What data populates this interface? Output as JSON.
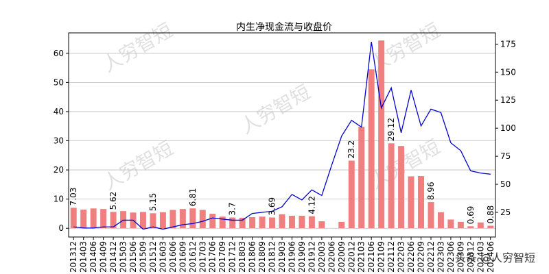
{
  "watermark": "人穷智短",
  "footer_watermark": "头条 @人穷智短",
  "chart_data": {
    "type": "bar",
    "title": "内生净现金流与收盘价",
    "categories": [
      "201312",
      "201403",
      "201406",
      "201409",
      "201412",
      "201503",
      "201506",
      "201509",
      "201512",
      "201603",
      "201606",
      "201609",
      "201612",
      "201703",
      "201706",
      "201709",
      "201712",
      "201803",
      "201806",
      "201809",
      "201812",
      "201903",
      "201906",
      "201909",
      "201912",
      "202003",
      "202006",
      "202009",
      "202012",
      "202103",
      "202106",
      "202109",
      "202112",
      "202203",
      "202206",
      "202209",
      "202212",
      "202303",
      "202306",
      "202309",
      "202312",
      "202403",
      "202406"
    ],
    "series": [
      {
        "axis": "left",
        "kind": "bar",
        "color": "#f08080",
        "values": [
          7.03,
          6.4,
          6.8,
          6.6,
          5.62,
          5.9,
          5.4,
          5.6,
          5.15,
          5.5,
          6.3,
          6.6,
          6.81,
          6.3,
          5.0,
          4.0,
          3.7,
          3.6,
          3.8,
          4.0,
          3.69,
          4.8,
          4.3,
          4.3,
          4.12,
          2.4,
          0,
          2.2,
          23.2,
          34.8,
          54.5,
          64.4,
          29.12,
          28.2,
          17.8,
          17.9,
          8.96,
          5.5,
          3.0,
          2.2,
          0.69,
          2.0,
          0.88
        ]
      },
      {
        "axis": "right",
        "kind": "line",
        "color": "#0000cd",
        "values": [
          12,
          11,
          11,
          12,
          12,
          18,
          18,
          10,
          12,
          10,
          12,
          14,
          15,
          17,
          20,
          19,
          18,
          18,
          24,
          25,
          26,
          30,
          41,
          36,
          45,
          40,
          67,
          93,
          107,
          101,
          177,
          118,
          136,
          96,
          134,
          102,
          117,
          114,
          87,
          80,
          62,
          60,
          59
        ]
      }
    ],
    "data_labels": [
      {
        "index": 0,
        "text": "7.03"
      },
      {
        "index": 4,
        "text": "5.62"
      },
      {
        "index": 8,
        "text": "5.15"
      },
      {
        "index": 12,
        "text": "6.81"
      },
      {
        "index": 16,
        "text": "3.7"
      },
      {
        "index": 20,
        "text": "3.69"
      },
      {
        "index": 24,
        "text": "4.12"
      },
      {
        "index": 28,
        "text": "23.2"
      },
      {
        "index": 32,
        "text": "29.12"
      },
      {
        "index": 36,
        "text": "8.96"
      },
      {
        "index": 40,
        "text": "0.69"
      },
      {
        "index": 42,
        "text": "0.88"
      }
    ],
    "y_left": {
      "ylim": [
        -3,
        67
      ],
      "ticks": [
        0,
        10,
        20,
        30,
        40,
        50,
        60
      ]
    },
    "y_right": {
      "ylim": [
        3,
        185
      ],
      "ticks": [
        25,
        50,
        75,
        100,
        125,
        150,
        175
      ]
    },
    "grid": true
  }
}
